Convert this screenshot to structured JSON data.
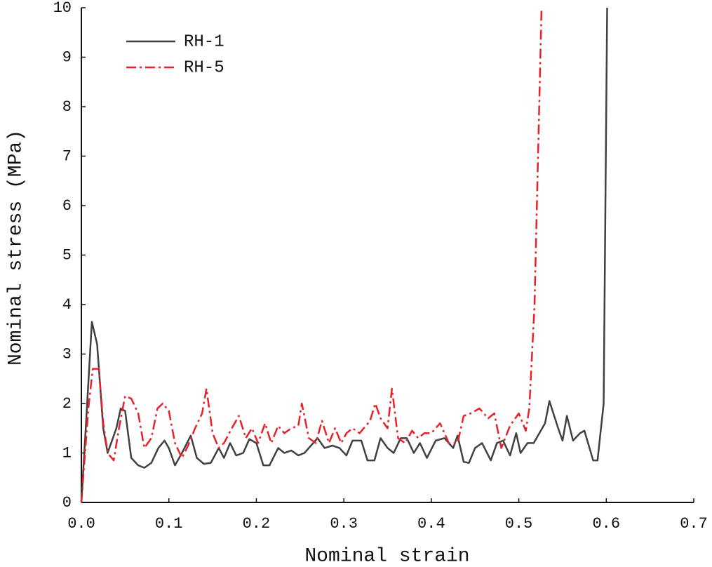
{
  "chart_data": {
    "type": "line",
    "xlabel": "Nominal strain",
    "ylabel": "Nominal stress (MPa)",
    "xlim": [
      0,
      0.7
    ],
    "ylim": [
      0,
      10
    ],
    "xticks": [
      {
        "value": 0,
        "label": "0.0"
      },
      0.1,
      0.2,
      0.3,
      0.4,
      0.5,
      0.6,
      0.7
    ],
    "yticks": [
      0,
      1,
      2,
      3,
      4,
      5,
      6,
      7,
      8,
      9,
      10
    ],
    "legend": "upper left",
    "series": [
      {
        "name": "RH-1",
        "color": "#404040",
        "style": "solid",
        "x": [
          0,
          0.005,
          0.012,
          0.018,
          0.025,
          0.03,
          0.04,
          0.045,
          0.05,
          0.057,
          0.065,
          0.072,
          0.08,
          0.088,
          0.095,
          0.1,
          0.107,
          0.115,
          0.125,
          0.132,
          0.14,
          0.148,
          0.157,
          0.163,
          0.17,
          0.177,
          0.185,
          0.192,
          0.2,
          0.208,
          0.215,
          0.225,
          0.232,
          0.24,
          0.248,
          0.255,
          0.27,
          0.278,
          0.287,
          0.295,
          0.303,
          0.31,
          0.32,
          0.327,
          0.335,
          0.342,
          0.35,
          0.357,
          0.365,
          0.372,
          0.38,
          0.387,
          0.395,
          0.405,
          0.415,
          0.425,
          0.43,
          0.437,
          0.443,
          0.45,
          0.458,
          0.468,
          0.475,
          0.482,
          0.49,
          0.497,
          0.502,
          0.51,
          0.517,
          0.53,
          0.535,
          0.545,
          0.55,
          0.555,
          0.562,
          0.57,
          0.575,
          0.585,
          0.59,
          0.597,
          0.601
        ],
        "values": [
          0,
          1.5,
          3.65,
          3.2,
          1.5,
          1.0,
          1.5,
          1.9,
          1.85,
          0.9,
          0.75,
          0.7,
          0.8,
          1.1,
          1.25,
          1.1,
          0.75,
          1.0,
          1.35,
          0.9,
          0.78,
          0.8,
          1.1,
          0.9,
          1.2,
          0.95,
          1.0,
          1.28,
          1.2,
          0.75,
          0.75,
          1.1,
          1.0,
          1.05,
          0.95,
          1.0,
          1.3,
          1.1,
          1.15,
          1.1,
          0.95,
          1.25,
          1.25,
          0.85,
          0.85,
          1.3,
          1.1,
          1.0,
          1.3,
          1.3,
          1.0,
          1.2,
          0.9,
          1.25,
          1.3,
          1.1,
          1.35,
          0.82,
          0.8,
          1.1,
          1.2,
          0.85,
          1.2,
          1.25,
          0.95,
          1.4,
          1.0,
          1.2,
          1.2,
          1.6,
          2.05,
          1.5,
          1.25,
          1.75,
          1.25,
          1.4,
          1.45,
          0.85,
          0.85,
          2.0,
          10
        ]
      },
      {
        "name": "RH-5",
        "color": "#e8202a",
        "style": "dashdot",
        "x": [
          0,
          0.008,
          0.013,
          0.02,
          0.025,
          0.03,
          0.037,
          0.043,
          0.05,
          0.057,
          0.065,
          0.072,
          0.08,
          0.087,
          0.093,
          0.1,
          0.107,
          0.115,
          0.122,
          0.13,
          0.138,
          0.143,
          0.15,
          0.157,
          0.163,
          0.172,
          0.18,
          0.188,
          0.195,
          0.202,
          0.21,
          0.217,
          0.225,
          0.232,
          0.24,
          0.248,
          0.252,
          0.26,
          0.268,
          0.275,
          0.283,
          0.29,
          0.297,
          0.303,
          0.31,
          0.318,
          0.33,
          0.336,
          0.342,
          0.35,
          0.355,
          0.362,
          0.37,
          0.378,
          0.385,
          0.392,
          0.4,
          0.41,
          0.42,
          0.43,
          0.437,
          0.445,
          0.455,
          0.465,
          0.472,
          0.48,
          0.49,
          0.5,
          0.508,
          0.512,
          0.518,
          0.522,
          0.526
        ],
        "values": [
          0,
          1.9,
          2.7,
          2.7,
          1.6,
          1.0,
          0.85,
          1.5,
          2.15,
          2.1,
          1.8,
          1.1,
          1.3,
          1.9,
          2.0,
          1.85,
          1.2,
          0.9,
          1.15,
          1.5,
          1.8,
          2.3,
          1.4,
          1.1,
          1.2,
          1.5,
          1.75,
          1.3,
          1.5,
          1.2,
          1.6,
          1.2,
          1.55,
          1.4,
          1.5,
          1.55,
          2.0,
          1.3,
          1.2,
          1.65,
          1.2,
          1.5,
          1.2,
          1.4,
          1.5,
          1.4,
          1.65,
          2.0,
          1.7,
          1.5,
          2.3,
          1.3,
          1.2,
          1.45,
          1.3,
          1.4,
          1.4,
          1.6,
          1.2,
          1.2,
          1.75,
          1.8,
          1.9,
          1.7,
          1.8,
          1.1,
          1.55,
          1.8,
          1.45,
          1.9,
          4,
          7,
          10
        ]
      }
    ]
  }
}
